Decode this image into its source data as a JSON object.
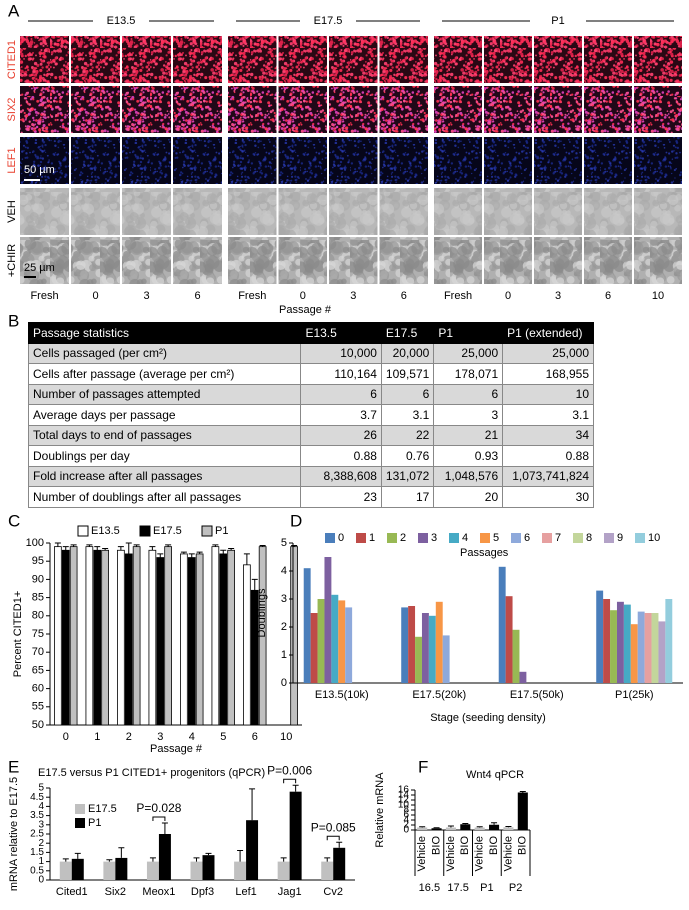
{
  "panel_labels": [
    "A",
    "B",
    "C",
    "D",
    "E",
    "F"
  ],
  "panel_a": {
    "stages": [
      "E13.5",
      "E17.5",
      "P1"
    ],
    "rows": [
      "CITED1",
      "SIX2",
      "LEF1",
      "VEH",
      "+CHIR"
    ],
    "row_label_colors": [
      "#e8402f",
      "#e8402f",
      "#e8402f",
      "#000000",
      "#000000"
    ],
    "columns": [
      [
        "Fresh",
        "0",
        "3",
        "6"
      ],
      [
        "Fresh",
        "0",
        "3",
        "6"
      ],
      [
        "Fresh",
        "0",
        "3",
        "6",
        "10"
      ]
    ],
    "x_label": "Passage #",
    "scale_bars": [
      "50 µm",
      "25 µm"
    ]
  },
  "table": {
    "header": [
      "Passage statistics",
      "E13.5",
      "E17.5",
      "P1",
      "P1 (extended)"
    ],
    "rows": [
      [
        "Cells passaged (per cm²)",
        "10,000",
        "20,000",
        "25,000",
        "25,000"
      ],
      [
        "Cells after passage (average per cm²)",
        "110,164",
        "109,571",
        "178,071",
        "168,955"
      ],
      [
        "Number of passages attempted",
        "6",
        "6",
        "6",
        "10"
      ],
      [
        "Average days per passage",
        "3.7",
        "3.1",
        "3",
        "3.1"
      ],
      [
        "Total days to end of passages",
        "26",
        "22",
        "21",
        "34"
      ],
      [
        "Doublings per day",
        "0.88",
        "0.76",
        "0.93",
        "0.88"
      ],
      [
        "Fold increase after all passages",
        "8,388,608",
        "131,072",
        "1,048,576",
        "1,073,741,824"
      ],
      [
        "Number of doublings after all passages",
        "23",
        "17",
        "20",
        "30"
      ]
    ]
  },
  "chart_data": [
    {
      "type": "bar",
      "y_label": "Percent CITED1+",
      "x_label": "Passage #",
      "categories": [
        "0",
        "1",
        "2",
        "3",
        "4",
        "5",
        "6",
        "10"
      ],
      "ylim": [
        50,
        100
      ],
      "yticks": [
        50,
        55,
        60,
        65,
        70,
        75,
        80,
        85,
        90,
        95,
        100
      ],
      "series": [
        {
          "name": "E13.5",
          "color": "#ffffff",
          "values": [
            99,
            99,
            98,
            98,
            97,
            99,
            94,
            null
          ],
          "errors": [
            1,
            0.5,
            1,
            1,
            0.5,
            0.5,
            3,
            null
          ]
        },
        {
          "name": "E17.5",
          "color": "#000000",
          "values": [
            98,
            98,
            97,
            96,
            96,
            97,
            87,
            null
          ],
          "errors": [
            1,
            1,
            3,
            1,
            1,
            1,
            3,
            null
          ]
        },
        {
          "name": "P1",
          "color": "#c0c0c0",
          "values": [
            99,
            98,
            99,
            99,
            97,
            98,
            99,
            99
          ],
          "errors": [
            0.5,
            0.5,
            0.5,
            0.5,
            0.5,
            0.5,
            0.3,
            0.3
          ]
        }
      ]
    },
    {
      "type": "bar",
      "y_label": "Doublings",
      "x_label": "Stage (seeding density)",
      "legend_title": "Passages",
      "categories": [
        "E13.5(10k)",
        "E17.5(20k)",
        "E17.5(50k)",
        "P1(25k)"
      ],
      "ylim": [
        0,
        5
      ],
      "yticks": [
        0,
        1,
        2,
        3,
        4,
        5
      ],
      "series": [
        {
          "name": "0",
          "color": "#4a7ebb",
          "values": [
            4.1,
            2.7,
            4.15,
            3.3
          ]
        },
        {
          "name": "1",
          "color": "#be4b48",
          "values": [
            2.5,
            2.75,
            3.1,
            3.0
          ]
        },
        {
          "name": "2",
          "color": "#98b954",
          "values": [
            3.0,
            1.65,
            1.9,
            2.6
          ]
        },
        {
          "name": "3",
          "color": "#7d60a0",
          "values": [
            4.5,
            2.5,
            0.4,
            2.9
          ]
        },
        {
          "name": "4",
          "color": "#46aac5",
          "values": [
            3.15,
            2.4,
            null,
            2.8
          ]
        },
        {
          "name": "5",
          "color": "#f79646",
          "values": [
            2.95,
            2.9,
            null,
            2.1
          ]
        },
        {
          "name": "6",
          "color": "#8ea9db",
          "values": [
            2.7,
            1.7,
            null,
            2.55
          ]
        },
        {
          "name": "7",
          "color": "#e6a0a0",
          "values": [
            null,
            null,
            null,
            2.5
          ]
        },
        {
          "name": "8",
          "color": "#c3d69b",
          "values": [
            null,
            null,
            null,
            2.5
          ]
        },
        {
          "name": "9",
          "color": "#b3a2c7",
          "values": [
            null,
            null,
            null,
            2.2
          ]
        },
        {
          "name": "10",
          "color": "#93cddd",
          "values": [
            null,
            null,
            null,
            3.0
          ]
        }
      ]
    },
    {
      "type": "bar",
      "title": "E17.5 versus P1 CITED1+ progenitors (qPCR)",
      "y_label": "mRNA relative to E17.5",
      "categories": [
        "Cited1",
        "Six2",
        "Meox1",
        "Dpf3",
        "Lef1",
        "Jag1",
        "Cv2"
      ],
      "ylim": [
        0,
        5
      ],
      "yticks": [
        0,
        0.5,
        1,
        1.5,
        2,
        2.5,
        3,
        3.5,
        4,
        4.5,
        5
      ],
      "series": [
        {
          "name": "E17.5",
          "color": "#c0c0c0",
          "values": [
            1,
            1,
            1,
            1,
            1,
            1,
            1
          ],
          "errors": [
            0.15,
            0.1,
            0.2,
            0.2,
            0.6,
            0.2,
            0.2
          ]
        },
        {
          "name": "P1",
          "color": "#000000",
          "values": [
            1.15,
            1.2,
            2.5,
            1.35,
            3.25,
            4.8,
            1.75
          ],
          "errors": [
            0.3,
            0.55,
            0.6,
            0.1,
            1.7,
            0.35,
            0.3
          ]
        }
      ],
      "annotations": [
        {
          "label": "P=0.028",
          "category": "Meox1"
        },
        {
          "label": "P=0.006",
          "category": "Jag1"
        },
        {
          "label": "P=0.085",
          "category": "Cv2"
        }
      ]
    },
    {
      "type": "bar-single",
      "title": "Wnt4 qPCR",
      "y_label": "Relative mRNA",
      "categories": [
        "Vehicle",
        "BIO",
        "Vehicle",
        "BIO",
        "Vehicle",
        "BIO",
        "Vehicle",
        "BIO"
      ],
      "groups": [
        "16.5",
        "17.5",
        "P1",
        "P2"
      ],
      "values": [
        1.0,
        0.7,
        1.0,
        2.3,
        1.0,
        2.1,
        1.1,
        15.0
      ],
      "errors": [
        0.3,
        0.2,
        0.6,
        0.3,
        0.3,
        0.8,
        0.3,
        0.4
      ],
      "colors": [
        "#c0c0c0",
        "#000000",
        "#c0c0c0",
        "#000000",
        "#c0c0c0",
        "#000000",
        "#c0c0c0",
        "#000000"
      ],
      "ylim": [
        0,
        16
      ],
      "yticks": [
        0,
        2,
        4,
        6,
        8,
        10,
        12,
        14,
        16
      ]
    }
  ]
}
